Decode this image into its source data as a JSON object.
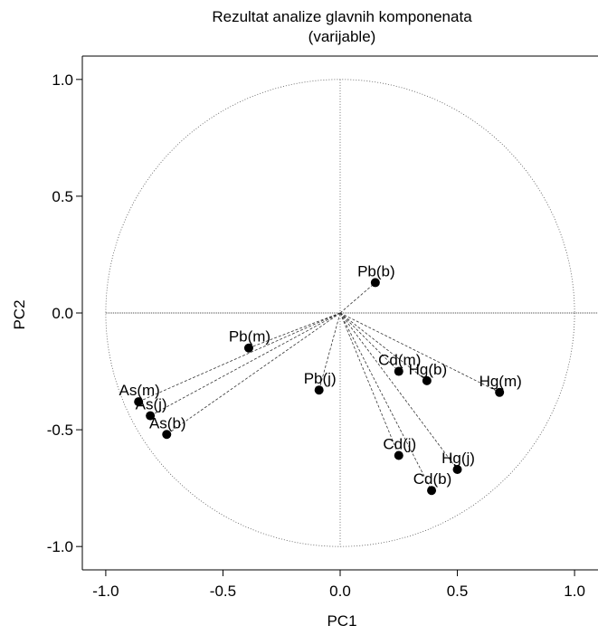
{
  "chart_data": {
    "type": "scatter",
    "title": "Rezultat analize glavnih komponenata",
    "subtitle": "(varijable)",
    "xlabel": "PC1",
    "ylabel": "PC2",
    "xlim": [
      -1.1,
      1.1
    ],
    "ylim": [
      -1.1,
      1.1
    ],
    "xticks": [
      "-1.0",
      "-0.5",
      "0.0",
      "0.5",
      "1.0"
    ],
    "yticks": [
      "1.0",
      "0.5",
      "0.0",
      "-0.5",
      "-1.0"
    ],
    "unit_circle": true,
    "points": [
      {
        "label": "Pb(b)",
        "x": 0.15,
        "y": 0.13
      },
      {
        "label": "Pb(m)",
        "x": -0.39,
        "y": -0.15
      },
      {
        "label": "Pb(j)",
        "x": -0.09,
        "y": -0.33
      },
      {
        "label": "Cd(m)",
        "x": 0.25,
        "y": -0.25
      },
      {
        "label": "Hg(b)",
        "x": 0.37,
        "y": -0.29
      },
      {
        "label": "Hg(m)",
        "x": 0.68,
        "y": -0.34
      },
      {
        "label": "As(m)",
        "x": -0.86,
        "y": -0.38
      },
      {
        "label": "As(j)",
        "x": -0.81,
        "y": -0.44
      },
      {
        "label": "As(b)",
        "x": -0.74,
        "y": -0.52
      },
      {
        "label": "Cd(j)",
        "x": 0.25,
        "y": -0.61
      },
      {
        "label": "Hg(j)",
        "x": 0.5,
        "y": -0.67
      },
      {
        "label": "Cd(b)",
        "x": 0.39,
        "y": -0.76
      }
    ]
  }
}
